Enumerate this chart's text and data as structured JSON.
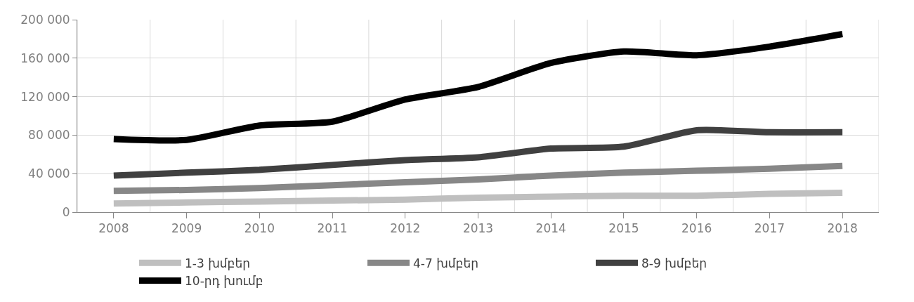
{
  "chart_data": {
    "type": "line",
    "categories": [
      "2008",
      "2009",
      "2010",
      "2011",
      "2012",
      "2013",
      "2014",
      "2015",
      "2016",
      "2017",
      "2018"
    ],
    "series": [
      {
        "name": "1-3 խմբեր",
        "color": "#bfbfbf",
        "values": [
          9000,
          10000,
          11000,
          12000,
          13000,
          15000,
          16000,
          17000,
          17000,
          19000,
          20000
        ]
      },
      {
        "name": "4-7 խմբեր",
        "color": "#878787",
        "values": [
          22000,
          23000,
          25000,
          28000,
          31000,
          34000,
          38000,
          41000,
          43000,
          45000,
          48000
        ]
      },
      {
        "name": "8-9 խմբեր",
        "color": "#404040",
        "values": [
          38000,
          41000,
          44000,
          49000,
          54000,
          57000,
          66000,
          68000,
          85000,
          83000,
          83000
        ]
      },
      {
        "name": "10-րդ խումբ",
        "color": "#000000",
        "values": [
          76000,
          75000,
          90000,
          94000,
          117000,
          130000,
          155000,
          167000,
          163000,
          172000,
          185000
        ]
      }
    ],
    "ylim": [
      0,
      200000
    ],
    "yticks": [
      0,
      {
        "value": 40000,
        "label": "40 000"
      },
      {
        "value": 80000,
        "label": "80 000"
      },
      {
        "value": 120000,
        "label": "120 000"
      },
      {
        "value": 160000,
        "label": "160 000"
      },
      {
        "value": 200000,
        "label": "200 000"
      }
    ],
    "grid": true,
    "legend": "bottom",
    "marker": "none",
    "line_style": "solid"
  }
}
